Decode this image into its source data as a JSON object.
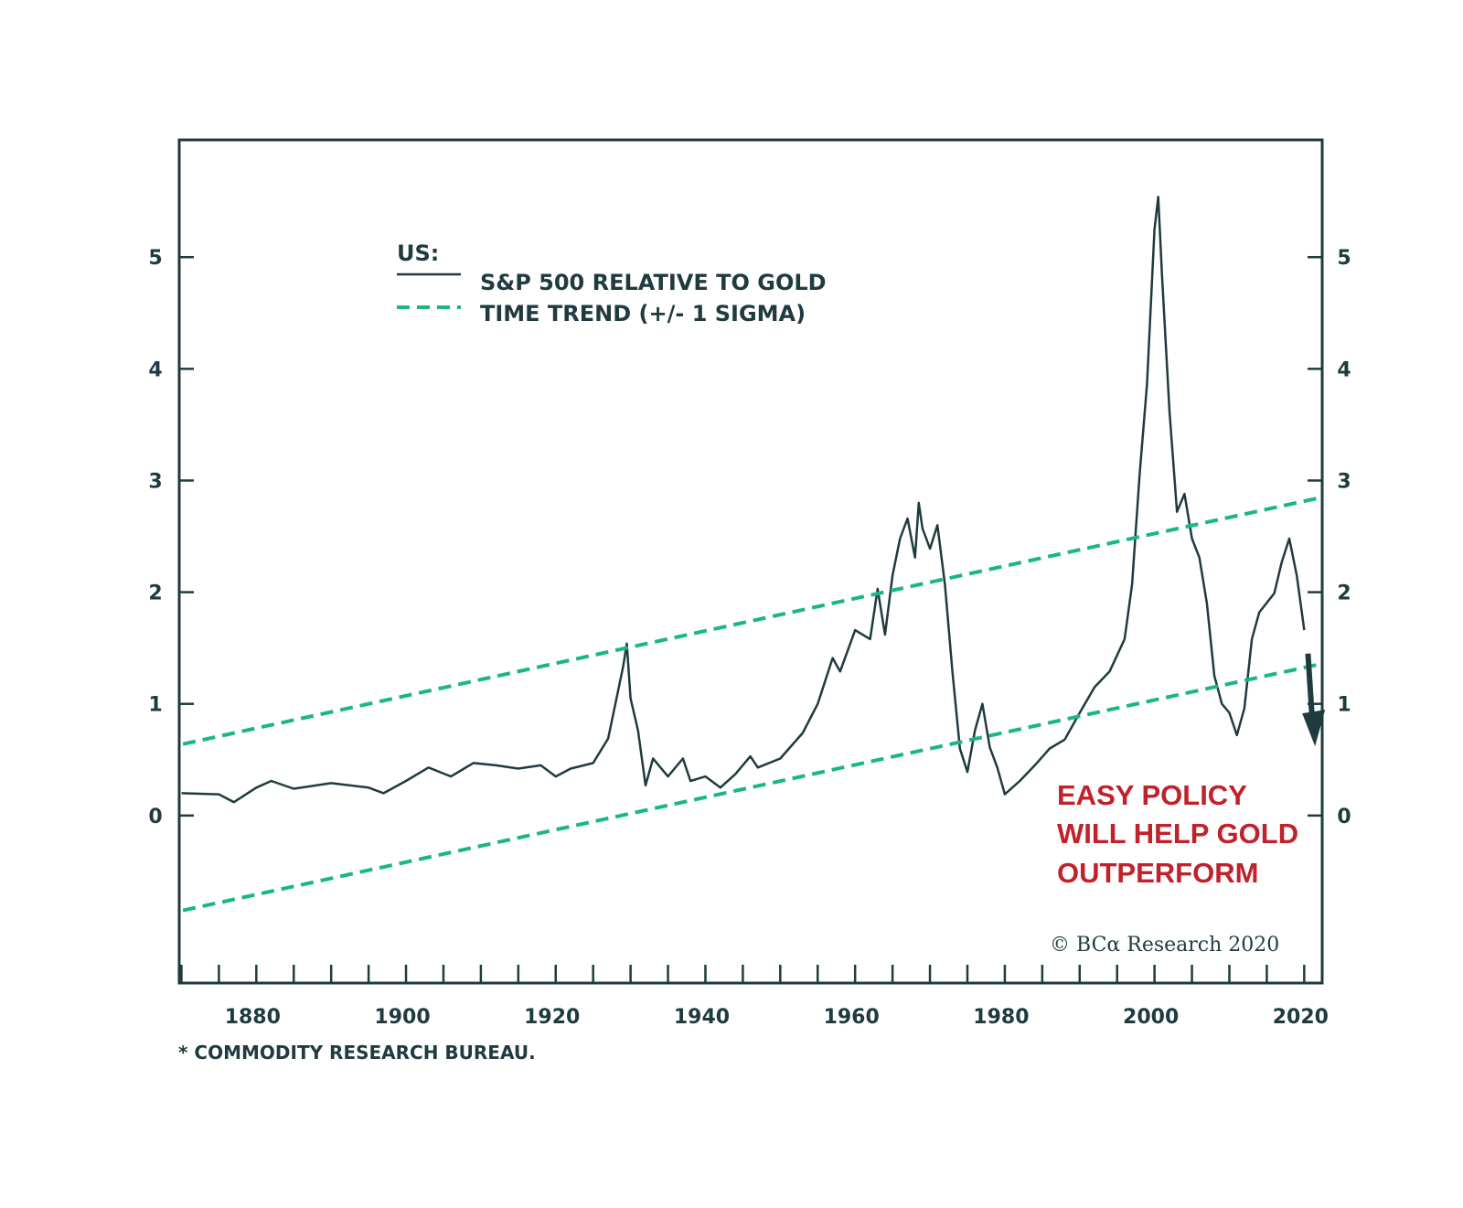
{
  "chart_data": {
    "type": "line",
    "title": "",
    "legend_heading": "US:",
    "legend_position": "top-left",
    "xlabel": "",
    "ylabel": "",
    "xlim": [
      1869.7,
      2022.4
    ],
    "ylim": [
      -1.5,
      6.05
    ],
    "x_ticks": [
      1880,
      1900,
      1920,
      1940,
      1960,
      1980,
      2000,
      2020
    ],
    "x_minor_tick_step_years": 5,
    "y_ticks": [
      0,
      1,
      2,
      3,
      4,
      5
    ],
    "grid": false,
    "series": [
      {
        "name": "S&P 500 RELATIVE TO GOLD",
        "style": "solid",
        "color": "#1f3b40",
        "x": [
          1870,
          1875,
          1877,
          1880,
          1882,
          1885,
          1890,
          1895,
          1897,
          1900,
          1903,
          1906,
          1909,
          1912,
          1915,
          1918,
          1920,
          1922,
          1925,
          1927,
          1929,
          1929.5,
          1930,
          1931,
          1932,
          1933,
          1935,
          1937,
          1938,
          1940,
          1942,
          1944,
          1946,
          1947,
          1950,
          1953,
          1955,
          1957,
          1958,
          1960,
          1962,
          1963,
          1964,
          1965,
          1966,
          1967,
          1968,
          1968.5,
          1969,
          1970,
          1971,
          1972,
          1973,
          1974,
          1975,
          1976,
          1977,
          1978,
          1979,
          1980,
          1982,
          1984,
          1986,
          1988,
          1990,
          1992,
          1994,
          1996,
          1997,
          1998,
          1999,
          2000,
          2000.5,
          2001,
          2002,
          2003,
          2004,
          2005,
          2006,
          2007,
          2008,
          2009,
          2010,
          2011,
          2012,
          2013,
          2014,
          2016,
          2017,
          2018,
          2019,
          2020
        ],
        "values": [
          0.2,
          0.19,
          0.12,
          0.25,
          0.31,
          0.24,
          0.29,
          0.25,
          0.2,
          0.31,
          0.43,
          0.35,
          0.47,
          0.45,
          0.42,
          0.45,
          0.35,
          0.42,
          0.47,
          0.69,
          1.33,
          1.54,
          1.05,
          0.76,
          0.27,
          0.51,
          0.35,
          0.51,
          0.31,
          0.35,
          0.25,
          0.37,
          0.53,
          0.43,
          0.51,
          0.74,
          1.0,
          1.41,
          1.29,
          1.66,
          1.58,
          2.03,
          1.62,
          2.15,
          2.48,
          2.66,
          2.31,
          2.8,
          2.57,
          2.39,
          2.6,
          2.07,
          1.29,
          0.6,
          0.39,
          0.76,
          1.0,
          0.61,
          0.43,
          0.19,
          0.31,
          0.45,
          0.6,
          0.68,
          0.92,
          1.15,
          1.29,
          1.58,
          2.07,
          3.05,
          3.86,
          5.25,
          5.54,
          4.84,
          3.62,
          2.72,
          2.88,
          2.48,
          2.31,
          1.9,
          1.25,
          1.0,
          0.92,
          0.72,
          0.96,
          1.58,
          1.82,
          1.99,
          2.27,
          2.48,
          2.15,
          1.66
        ]
      },
      {
        "name": "TIME TREND (+/- 1 SIGMA) upper",
        "style": "dashed",
        "color": "#1bb58a",
        "x": [
          1870.2,
          2021.7
        ],
        "values": [
          0.64,
          2.84
        ]
      },
      {
        "name": "TIME TREND (+/- 1 SIGMA) lower",
        "style": "dashed",
        "color": "#1bb58a",
        "x": [
          1870.2,
          2021.7
        ],
        "values": [
          -0.85,
          1.35
        ]
      }
    ],
    "legend": [
      {
        "label": "S&P 500 RELATIVE TO GOLD",
        "style": "solid",
        "color": "#1f3b40"
      },
      {
        "label": "TIME TREND (+/- 1 SIGMA)",
        "style": "dashed",
        "color": "#1bb58a"
      }
    ],
    "annotations": {
      "arrow": {
        "from": [
          2020.5,
          1.45
        ],
        "to": [
          2021.2,
          0.62
        ],
        "color": "#1f3b40",
        "meaning": "downward"
      },
      "callout_lines": [
        "EASY POLICY",
        "WILL HELP GOLD",
        "OUTPERFORM"
      ],
      "callout_color": "#c0212b",
      "credit": "© BCα Research 2020",
      "footnote": "* COMMODITY RESEARCH BUREAU."
    }
  }
}
